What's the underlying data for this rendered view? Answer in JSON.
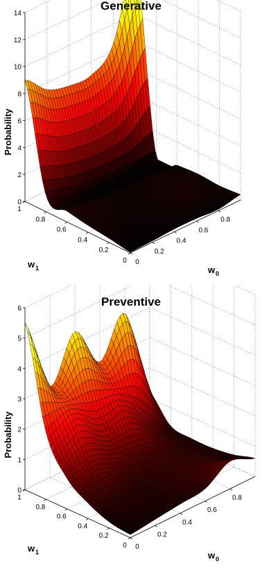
{
  "chart_data": [
    {
      "type": "surface",
      "title": "Generative",
      "xlabel": "w",
      "xlabel_sub": "0",
      "ylabel": "w",
      "ylabel_sub": "1",
      "zlabel": "Probability",
      "xlim": [
        0,
        1
      ],
      "ylim": [
        0,
        1
      ],
      "zlim": [
        0,
        14
      ],
      "xticks": [
        "0",
        "0.2",
        "0.4",
        "0.6",
        "0.8"
      ],
      "yticks": [
        "0",
        "0.2",
        "0.4",
        "0.6",
        "0.8",
        "1"
      ],
      "zticks": [
        "0",
        "2",
        "4",
        "6",
        "8",
        "10",
        "12",
        "14"
      ],
      "grid": true,
      "colormap": "hot",
      "x": [
        0,
        0.2,
        0.4,
        0.6,
        0.8,
        1
      ],
      "y": [
        0,
        0.2,
        0.4,
        0.6,
        0.8,
        1
      ],
      "z": [
        [
          0.05,
          0.1,
          0.2,
          0.2,
          0.1,
          0.4
        ],
        [
          0.3,
          0.2,
          0.3,
          0.4,
          0.5,
          0.3
        ],
        [
          0.5,
          0.4,
          0.3,
          0.4,
          0.5,
          0.4
        ],
        [
          0.8,
          0.5,
          0.4,
          0.3,
          0.4,
          0.3
        ],
        [
          1.2,
          0.8,
          0.5,
          0.4,
          0.3,
          0.2
        ],
        [
          9.0,
          7.5,
          7.0,
          7.0,
          8.5,
          14.6
        ]
      ]
    },
    {
      "type": "surface",
      "title": "Preventive",
      "xlabel": "w",
      "xlabel_sub": "0",
      "ylabel": "w",
      "ylabel_sub": "1",
      "zlabel": "Probability",
      "xlim": [
        0,
        1
      ],
      "ylim": [
        0,
        1
      ],
      "zlim": [
        0,
        6
      ],
      "xticks": [
        "0",
        "0.2",
        "0.4",
        "0.6",
        "0.8"
      ],
      "yticks": [
        "0",
        "0.2",
        "0.4",
        "0.6",
        "0.8",
        "1"
      ],
      "zticks": [
        "0",
        "1",
        "2",
        "3",
        "4",
        "5",
        "6"
      ],
      "grid": true,
      "colormap": "hot",
      "x": [
        0,
        0.2,
        0.4,
        0.6,
        0.8,
        1
      ],
      "y": [
        0,
        0.2,
        0.4,
        0.6,
        0.8,
        1
      ],
      "z": [
        [
          0.1,
          0.2,
          0.3,
          0.4,
          0.9,
          0.6
        ],
        [
          0.2,
          0.3,
          0.3,
          0.5,
          0.6,
          0.4
        ],
        [
          0.5,
          0.5,
          0.4,
          0.5,
          0.5,
          0.3
        ],
        [
          1.0,
          1.2,
          0.9,
          0.8,
          0.6,
          0.3
        ],
        [
          2.2,
          2.5,
          2.0,
          2.0,
          1.2,
          0.4
        ],
        [
          5.5,
          3.0,
          4.4,
          3.0,
          4.2,
          1.2
        ]
      ]
    }
  ]
}
